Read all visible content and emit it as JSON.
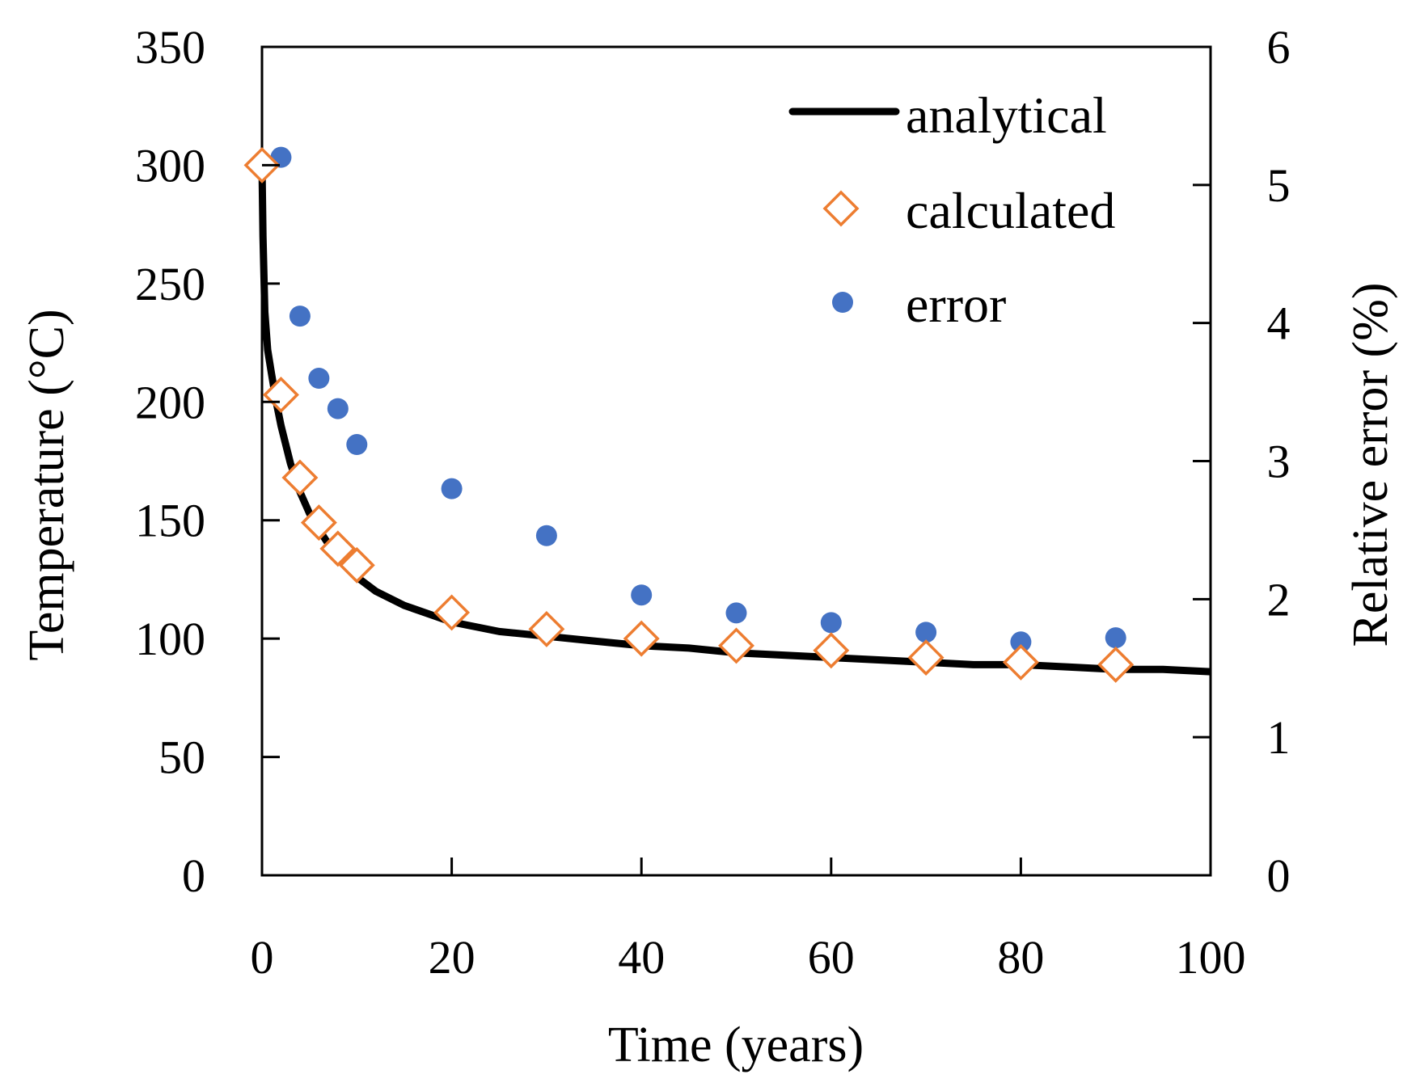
{
  "chart_data": {
    "type": "line",
    "xlabel": "Time (years)",
    "ylabel_left": "Temperature (°C)",
    "ylabel_right": "Relative error (%)",
    "x_ticks": [
      "0",
      "20",
      "40",
      "60",
      "80",
      "100"
    ],
    "y_left_ticks": [
      "0",
      "50",
      "100",
      "150",
      "200",
      "250",
      "300",
      "350"
    ],
    "y_right_ticks": [
      "0",
      "1",
      "2",
      "3",
      "4",
      "5",
      "6"
    ],
    "xlim": [
      0,
      100
    ],
    "ylim_left": [
      0,
      350
    ],
    "ylim_right": [
      0,
      6
    ],
    "legend_position": "top-right",
    "colors": {
      "analytical": "#000000",
      "calculated": "#ED7D31",
      "error": "#4472C4"
    },
    "series": [
      {
        "name": "analytical",
        "axis": "left",
        "style": "line",
        "x": [
          0,
          0.1,
          0.3,
          0.6,
          1,
          1.5,
          2,
          3,
          4,
          5,
          6,
          8,
          10,
          12,
          15,
          20,
          25,
          30,
          35,
          40,
          45,
          50,
          55,
          60,
          65,
          70,
          75,
          80,
          85,
          90,
          95,
          100
        ],
        "values": [
          300,
          270,
          238,
          222,
          212,
          200,
          190,
          174,
          162,
          153,
          146,
          134,
          126,
          120,
          114,
          107,
          103,
          101,
          99,
          97,
          96,
          94,
          93,
          92,
          91,
          90,
          89,
          89,
          88,
          87,
          87,
          86
        ]
      },
      {
        "name": "calculated",
        "axis": "left",
        "style": "diamond",
        "x": [
          0,
          2,
          4,
          6,
          8,
          10,
          20,
          30,
          40,
          50,
          60,
          70,
          80,
          90
        ],
        "values": [
          300,
          203,
          168,
          149,
          138,
          131,
          111,
          104,
          100,
          97,
          95,
          92,
          90,
          89
        ]
      },
      {
        "name": "error",
        "axis": "right",
        "style": "dot",
        "x": [
          2,
          4,
          6,
          8,
          10,
          20,
          30,
          40,
          50,
          60,
          70,
          80,
          90
        ],
        "values": [
          5.2,
          4.05,
          3.6,
          3.38,
          3.12,
          2.8,
          2.46,
          2.03,
          1.9,
          1.83,
          1.76,
          1.69,
          1.72
        ]
      }
    ]
  }
}
